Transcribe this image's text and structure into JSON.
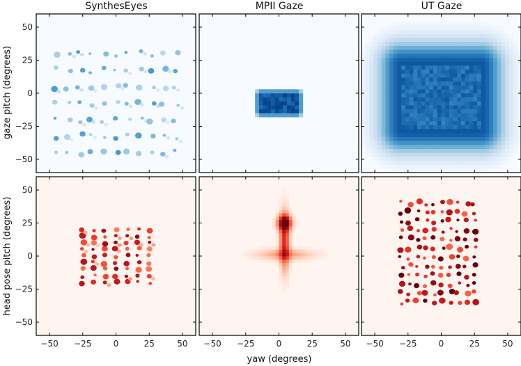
{
  "figure": {
    "xlabel": "yaw (degrees)",
    "row_ylabels": [
      "gaze pitch (degrees)",
      "head pose pitch (degrees)"
    ],
    "column_titles": [
      "SynthesEyes",
      "MPII Gaze",
      "UT Gaze"
    ]
  },
  "chart_data": [
    {
      "type": "heatmap",
      "row": 0,
      "col": 0,
      "title": "SynthesEyes",
      "xlabel": "",
      "ylabel": "gaze pitch (degrees)",
      "xlim": [
        -60,
        60
      ],
      "ylim": [
        -60,
        60
      ],
      "xticks": [
        -50,
        -25,
        0,
        25,
        50
      ],
      "yticks": [
        -50,
        -25,
        0,
        25,
        50
      ],
      "xticklabels": [
        "−50",
        "−25",
        "0",
        "25",
        "50"
      ],
      "yticklabels": [
        "−50",
        "−25",
        "0",
        "25",
        "50"
      ],
      "colormap": "Blues",
      "background": "#f7fbff",
      "pattern": {
        "kind": "grid",
        "x_range": [
          -45,
          45
        ],
        "y_range": [
          -45,
          30
        ],
        "nx": 11,
        "ny": 7,
        "intensity": 0.55,
        "spread": 0.35,
        "jitter": 0.2
      }
    },
    {
      "type": "heatmap",
      "row": 0,
      "col": 1,
      "title": "MPII Gaze",
      "xlabel": "",
      "ylabel": "",
      "xlim": [
        -60,
        60
      ],
      "ylim": [
        -60,
        60
      ],
      "xticks": [
        -50,
        -25,
        0,
        25,
        50
      ],
      "yticks": [
        -50,
        -25,
        0,
        25,
        50
      ],
      "xticklabels": [
        "−50",
        "−25",
        "0",
        "25",
        "50"
      ],
      "yticklabels": [],
      "colormap": "Blues",
      "background": "#f7fbff",
      "pattern": {
        "kind": "rect",
        "x_range": [
          -15,
          15
        ],
        "y_range": [
          -15,
          0
        ],
        "intensity": 0.95,
        "soft": 1.5
      }
    },
    {
      "type": "heatmap",
      "row": 0,
      "col": 2,
      "title": "UT Gaze",
      "xlabel": "",
      "ylabel": "",
      "xlim": [
        -60,
        60
      ],
      "ylim": [
        -60,
        60
      ],
      "xticks": [
        -50,
        -25,
        0,
        25,
        50
      ],
      "yticks": [
        -50,
        -25,
        0,
        25,
        50
      ],
      "xticklabels": [
        "−50",
        "−25",
        "0",
        "25",
        "50"
      ],
      "yticklabels": [],
      "colormap": "Blues",
      "background": "#f7fbff",
      "pattern": {
        "kind": "rect",
        "x_range": [
          -30,
          30
        ],
        "y_range": [
          -28,
          22
        ],
        "intensity": 0.85,
        "soft": 12
      }
    },
    {
      "type": "heatmap",
      "row": 1,
      "col": 0,
      "title": "",
      "xlabel": "",
      "ylabel": "head pose pitch (degrees)",
      "xlim": [
        -60,
        60
      ],
      "ylim": [
        -60,
        60
      ],
      "xticks": [
        -50,
        -25,
        0,
        25,
        50
      ],
      "yticks": [
        -50,
        -25,
        0,
        25,
        50
      ],
      "xticklabels": [
        "−50",
        "−25",
        "0",
        "25",
        "50"
      ],
      "yticklabels": [
        "−50",
        "−25",
        "0",
        "25",
        "50"
      ],
      "colormap": "Reds",
      "background": "#fff5f0",
      "pattern": {
        "kind": "grid",
        "x_range": [
          -25,
          25
        ],
        "y_range": [
          -20,
          20
        ],
        "nx": 7,
        "ny": 9,
        "intensity": 0.85,
        "spread": 0.25,
        "jitter": 0.1
      }
    },
    {
      "type": "heatmap",
      "row": 1,
      "col": 1,
      "title": "",
      "xlabel": "yaw (degrees)",
      "ylabel": "",
      "xlim": [
        -60,
        60
      ],
      "ylim": [
        -60,
        60
      ],
      "xticks": [
        -50,
        -25,
        0,
        25,
        50
      ],
      "yticks": [
        -50,
        -25,
        0,
        25,
        50
      ],
      "xticklabels": [
        "−50",
        "−25",
        "0",
        "25",
        "50"
      ],
      "yticklabels": [],
      "colormap": "Reds",
      "background": "#fff5f0",
      "pattern": {
        "kind": "cross",
        "center": [
          3,
          0
        ],
        "peak": [
          3,
          24
        ],
        "intensity": 1.0
      }
    },
    {
      "type": "heatmap",
      "row": 1,
      "col": 2,
      "title": "",
      "xlabel": "",
      "ylabel": "",
      "xlim": [
        -60,
        60
      ],
      "ylim": [
        -60,
        60
      ],
      "xticks": [
        -50,
        -25,
        0,
        25,
        50
      ],
      "yticks": [
        -50,
        -25,
        0,
        25,
        50
      ],
      "xticklabels": [
        "−50",
        "−25",
        "0",
        "25",
        "50"
      ],
      "yticklabels": [],
      "colormap": "Reds",
      "background": "#fff5f0",
      "pattern": {
        "kind": "grid",
        "x_range": [
          -30,
          25
        ],
        "y_range": [
          -35,
          40
        ],
        "nx": 10,
        "ny": 12,
        "intensity": 1.0,
        "spread": 0.1,
        "jitter": 0.15
      }
    }
  ]
}
